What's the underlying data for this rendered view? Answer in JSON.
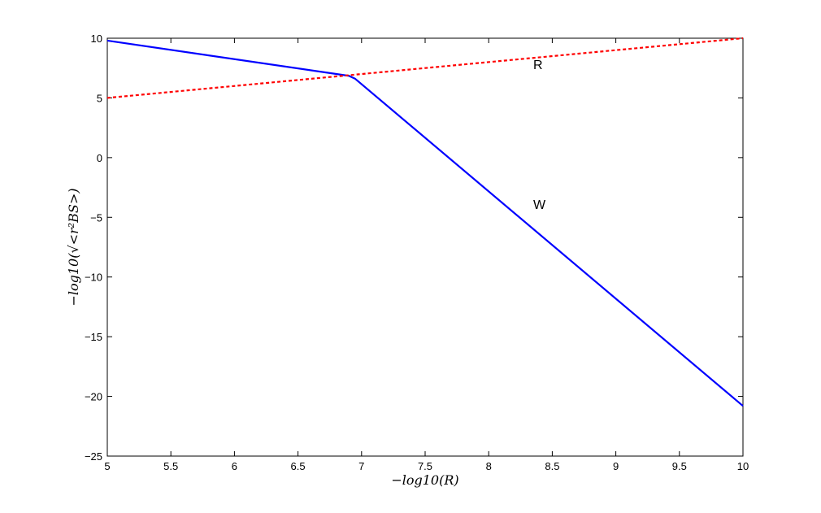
{
  "chart_data": {
    "type": "line",
    "title": "",
    "xlabel": "−log10(R)",
    "ylabel": "−log10(√<r²BS>)",
    "xlim": [
      5,
      10
    ],
    "ylim": [
      -25,
      10
    ],
    "xticks": [
      5,
      5.5,
      6,
      6.5,
      7,
      7.5,
      8,
      8.5,
      9,
      9.5,
      10
    ],
    "yticks": [
      -25,
      -20,
      -15,
      -10,
      -5,
      0,
      5,
      10
    ],
    "x_tick_labels": [
      "5",
      "5.5",
      "6",
      "6.5",
      "7",
      "7.5",
      "8",
      "8.5",
      "9",
      "9.5",
      "10"
    ],
    "y_tick_labels": [
      "−25",
      "−20",
      "−15",
      "−10",
      "−5",
      "0",
      "5",
      "10"
    ],
    "grid": false,
    "series": [
      {
        "label": "W",
        "color": "#0000ff",
        "style": "solid",
        "points": [
          [
            5,
            9.8
          ],
          [
            6.9,
            6.85
          ],
          [
            6.95,
            6.6
          ],
          [
            10,
            -20.8
          ]
        ]
      },
      {
        "label": "R",
        "color": "#ff0000",
        "style": "dashed",
        "points": [
          [
            5,
            5.0
          ],
          [
            10,
            10.0
          ]
        ]
      }
    ],
    "annotations": [
      {
        "text": "R",
        "x": 8.35,
        "y": 7.4
      },
      {
        "text": "W",
        "x": 8.35,
        "y": -4.3
      }
    ]
  }
}
